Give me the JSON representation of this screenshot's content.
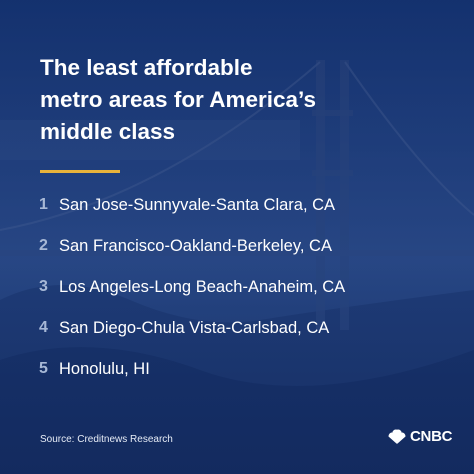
{
  "title": {
    "line1": "The least affordable",
    "line2": "metro areas for America’s",
    "line3": "middle class"
  },
  "list": [
    {
      "rank": "1",
      "name": "San Jose-Sunnyvale-Santa Clara, CA"
    },
    {
      "rank": "2",
      "name": "San Francisco-Oakland-Berkeley, CA"
    },
    {
      "rank": "3",
      "name": "Los Angeles-Long Beach-Anaheim, CA"
    },
    {
      "rank": "4",
      "name": "San Diego-Chula Vista-Carlsbad, CA"
    },
    {
      "rank": "5",
      "name": "Honolulu, HI"
    }
  ],
  "source": "Source: Creditnews Research",
  "logo": {
    "wordmark": "CNBC",
    "icon": "peacock-icon"
  },
  "background": {
    "subject": "golden-gate-bridge-photo"
  },
  "colors": {
    "background": "#173a78",
    "accent_rule": "#e8b33a",
    "rank_numbers": "#a7b8d6",
    "text": "#ffffff"
  }
}
